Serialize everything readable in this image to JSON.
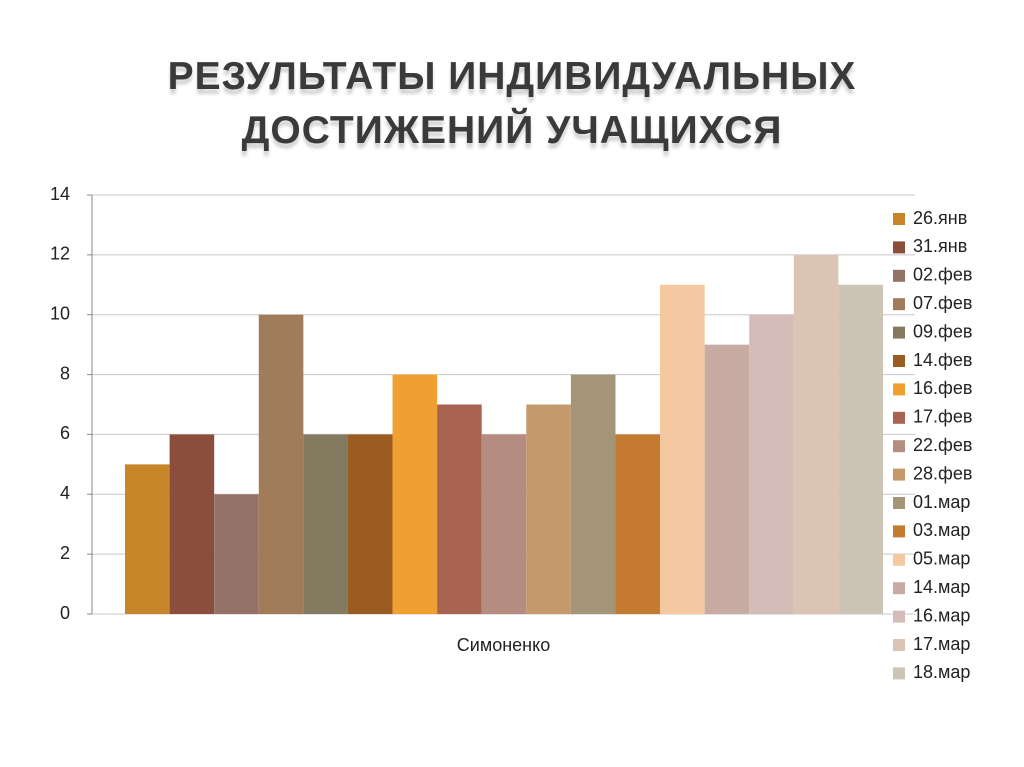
{
  "chart_data": {
    "type": "bar",
    "title": "РЕЗУЛЬТАТЫ ИНДИВИДУАЛЬНЫХ ДОСТИЖЕНИЙ УЧАЩИХСЯ",
    "categories": [
      "Симоненко"
    ],
    "series": [
      {
        "name": "26.янв",
        "color": "#c8862a",
        "values": [
          5
        ]
      },
      {
        "name": "31.янв",
        "color": "#8b4e3c",
        "values": [
          6
        ]
      },
      {
        "name": "02.фев",
        "color": "#957268",
        "values": [
          4
        ]
      },
      {
        "name": "07.фев",
        "color": "#a07c5a",
        "values": [
          10
        ]
      },
      {
        "name": "09.фев",
        "color": "#847a60",
        "values": [
          6
        ]
      },
      {
        "name": "14.фев",
        "color": "#9b5c22",
        "values": [
          6
        ]
      },
      {
        "name": "16.фев",
        "color": "#f0a030",
        "values": [
          8
        ]
      },
      {
        "name": "17.фев",
        "color": "#a86450",
        "values": [
          7
        ]
      },
      {
        "name": "22.фев",
        "color": "#b48c80",
        "values": [
          6
        ]
      },
      {
        "name": "28.фев",
        "color": "#c49a6c",
        "values": [
          7
        ]
      },
      {
        "name": "01.мар",
        "color": "#a49478",
        "values": [
          8
        ]
      },
      {
        "name": "03.мар",
        "color": "#c47a30",
        "values": [
          6
        ]
      },
      {
        "name": "05.мар",
        "color": "#f4c8a0",
        "values": [
          11
        ]
      },
      {
        "name": "14.мар",
        "color": "#c8aca4",
        "values": [
          9
        ]
      },
      {
        "name": "16.мар",
        "color": "#d4bcb8",
        "values": [
          10
        ]
      },
      {
        "name": "17.мар",
        "color": "#dcc4b4",
        "values": [
          12
        ]
      },
      {
        "name": "18.мар",
        "color": "#ccc4b4",
        "values": [
          11
        ]
      }
    ],
    "ylim": [
      0,
      14
    ],
    "yticks": [
      0,
      2,
      4,
      6,
      8,
      10,
      12,
      14
    ],
    "grid": true,
    "legend": "right"
  }
}
